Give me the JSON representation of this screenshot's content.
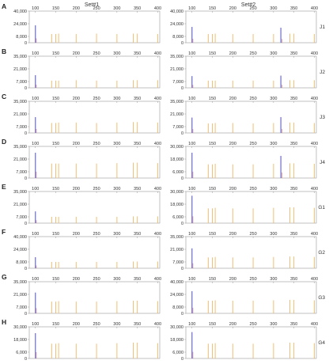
{
  "colors": {
    "peak_blue": "#7f7fcf",
    "peak_orange": "#f2be73",
    "axis": "#9a9a9a",
    "grid": "#dcdcdc"
  },
  "column_titles": [
    "Set#1",
    "Set#2"
  ],
  "x_tick_labels": [
    "100",
    "150",
    "200",
    "250",
    "300",
    "350",
    "400"
  ],
  "chart_data": [
    {
      "type": "bar",
      "panel": "A",
      "column": "Set#1",
      "x_ticks": [
        100,
        150,
        200,
        250,
        300,
        350,
        400
      ],
      "xlim": [
        85,
        405
      ],
      "y_ticks": [
        0,
        8000,
        24000,
        40000
      ],
      "ylim": [
        0,
        40000
      ],
      "series": [
        {
          "color": "blue",
          "x": [
            100
          ],
          "values": [
            22000
          ]
        },
        {
          "color": "orange",
          "x": [
            140,
            150,
            157,
            200,
            250,
            300,
            340,
            350,
            400
          ],
          "values": [
            11000,
            11000,
            11500,
            11000,
            11500,
            11000,
            11500,
            11500,
            11000
          ]
        }
      ]
    },
    {
      "type": "bar",
      "panel": "A",
      "column": "Set#2",
      "sample": "J1",
      "x_ticks": [
        100,
        150,
        200,
        250,
        300,
        350,
        400
      ],
      "xlim": [
        85,
        405
      ],
      "y_ticks": [
        0,
        8000,
        24000,
        40000
      ],
      "ylim": [
        0,
        40000
      ],
      "series": [
        {
          "color": "blue",
          "x": [
            100,
            318
          ],
          "values": [
            20000,
            19000
          ]
        },
        {
          "color": "orange",
          "x": [
            140,
            150,
            157,
            200,
            250,
            300,
            340,
            350,
            400
          ],
          "values": [
            11000,
            11000,
            11500,
            11000,
            11000,
            11000,
            11500,
            11500,
            11000
          ]
        }
      ]
    },
    {
      "type": "bar",
      "panel": "B",
      "column": "Set#1",
      "x_ticks": [
        100,
        150,
        200,
        250,
        300,
        350,
        400
      ],
      "xlim": [
        85,
        405
      ],
      "y_ticks": [
        0,
        7000,
        21000,
        35000
      ],
      "ylim": [
        0,
        35000
      ],
      "series": [
        {
          "color": "blue",
          "x": [
            100
          ],
          "values": [
            14000
          ]
        },
        {
          "color": "orange",
          "x": [
            140,
            150,
            157,
            200,
            250,
            300,
            340,
            350,
            400
          ],
          "values": [
            8000,
            8000,
            8000,
            8500,
            8000,
            8000,
            8500,
            8500,
            8500
          ]
        }
      ]
    },
    {
      "type": "bar",
      "panel": "B",
      "column": "Set#2",
      "sample": "J2",
      "x_ticks": [
        100,
        150,
        200,
        250,
        300,
        350,
        400
      ],
      "xlim": [
        85,
        405
      ],
      "y_ticks": [
        0,
        7000,
        21000,
        35000
      ],
      "ylim": [
        0,
        35000
      ],
      "series": [
        {
          "color": "blue",
          "x": [
            100,
            318
          ],
          "values": [
            13000,
            13500
          ]
        },
        {
          "color": "orange",
          "x": [
            140,
            150,
            157,
            200,
            250,
            300,
            340,
            350,
            400
          ],
          "values": [
            8000,
            8000,
            8000,
            8000,
            8000,
            8000,
            8500,
            8500,
            8500
          ]
        }
      ]
    },
    {
      "type": "bar",
      "panel": "C",
      "column": "Set#1",
      "x_ticks": [
        100,
        150,
        200,
        250,
        300,
        350,
        400
      ],
      "xlim": [
        85,
        405
      ],
      "y_ticks": [
        0,
        7000,
        21000,
        35000
      ],
      "ylim": [
        0,
        35000
      ],
      "series": [
        {
          "color": "blue",
          "x": [
            100
          ],
          "values": [
            17500
          ]
        },
        {
          "color": "orange",
          "x": [
            140,
            150,
            157,
            200,
            250,
            300,
            340,
            350,
            400
          ],
          "values": [
            11000,
            11000,
            11500,
            11500,
            11000,
            11500,
            12000,
            12000,
            11500
          ]
        }
      ]
    },
    {
      "type": "bar",
      "panel": "C",
      "column": "Set#2",
      "sample": "J3",
      "x_ticks": [
        100,
        150,
        200,
        250,
        300,
        350,
        400
      ],
      "xlim": [
        85,
        405
      ],
      "y_ticks": [
        0,
        7000,
        21000,
        35000
      ],
      "ylim": [
        0,
        35000
      ],
      "series": [
        {
          "color": "blue",
          "x": [
            100,
            318
          ],
          "values": [
            17000,
            17500
          ]
        },
        {
          "color": "orange",
          "x": [
            140,
            150,
            157,
            200,
            250,
            300,
            340,
            350,
            400
          ],
          "values": [
            10500,
            10500,
            11000,
            11000,
            10500,
            11000,
            11500,
            11500,
            11000
          ]
        }
      ]
    },
    {
      "type": "bar",
      "panel": "D",
      "column": "Set#1",
      "x_ticks": [
        100,
        150,
        200,
        250,
        300,
        350,
        400
      ],
      "xlim": [
        85,
        405
      ],
      "y_ticks": [
        0,
        7000,
        21000,
        35000
      ],
      "ylim": [
        0,
        35000
      ],
      "series": [
        {
          "color": "blue",
          "x": [
            100
          ],
          "values": [
            28000
          ]
        },
        {
          "color": "orange",
          "x": [
            140,
            150,
            157,
            200,
            250,
            300,
            340,
            350,
            400
          ],
          "values": [
            16000,
            16000,
            16000,
            16000,
            16000,
            16500,
            17000,
            17000,
            16500
          ]
        }
      ]
    },
    {
      "type": "bar",
      "panel": "D",
      "column": "Set#2",
      "sample": "J4",
      "x_ticks": [
        100,
        150,
        200,
        250,
        300,
        350,
        400
      ],
      "xlim": [
        85,
        405
      ],
      "y_ticks": [
        0,
        6000,
        18000,
        30000
      ],
      "ylim": [
        0,
        30000
      ],
      "series": [
        {
          "color": "blue",
          "x": [
            100,
            318
          ],
          "values": [
            24000,
            21000
          ]
        },
        {
          "color": "orange",
          "x": [
            140,
            150,
            157,
            200,
            250,
            300,
            340,
            350,
            400
          ],
          "values": [
            13000,
            13000,
            13500,
            13000,
            13000,
            13500,
            14000,
            14000,
            13500
          ]
        }
      ]
    },
    {
      "type": "bar",
      "panel": "E",
      "column": "Set#1",
      "x_ticks": [
        100,
        150,
        200,
        250,
        300,
        350,
        400
      ],
      "xlim": [
        85,
        405
      ],
      "y_ticks": [
        0,
        7000,
        21000,
        35000
      ],
      "ylim": [
        0,
        35000
      ],
      "series": [
        {
          "color": "blue",
          "x": [
            100
          ],
          "values": [
            13000
          ]
        },
        {
          "color": "orange",
          "x": [
            140,
            150,
            157,
            200,
            250,
            300,
            340,
            350,
            400
          ],
          "values": [
            7000,
            7000,
            7000,
            7000,
            7000,
            7000,
            7500,
            7500,
            7500
          ]
        }
      ]
    },
    {
      "type": "bar",
      "panel": "E",
      "column": "Set#2",
      "sample": "G1",
      "x_ticks": [
        100,
        150,
        200,
        250,
        300,
        350,
        400
      ],
      "xlim": [
        85,
        405
      ],
      "y_ticks": [
        0,
        6000,
        18000,
        30000
      ],
      "ylim": [
        0,
        30000
      ],
      "series": [
        {
          "color": "blue",
          "x": [
            100
          ],
          "values": [
            26000
          ]
        },
        {
          "color": "orange",
          "x": [
            140,
            150,
            157,
            200,
            250,
            300,
            340,
            350,
            400
          ],
          "values": [
            14000,
            14000,
            14500,
            14000,
            14000,
            14500,
            15000,
            15000,
            14500
          ]
        }
      ]
    },
    {
      "type": "bar",
      "panel": "F",
      "column": "Set#1",
      "x_ticks": [
        100,
        150,
        200,
        250,
        300,
        350,
        400
      ],
      "xlim": [
        85,
        405
      ],
      "y_ticks": [
        0,
        8000,
        24000,
        40000
      ],
      "ylim": [
        0,
        40000
      ],
      "series": [
        {
          "color": "blue",
          "x": [
            100
          ],
          "values": [
            14000
          ]
        },
        {
          "color": "orange",
          "x": [
            140,
            150,
            157,
            200,
            250,
            300,
            340,
            350,
            400
          ],
          "values": [
            8000,
            8000,
            8000,
            8000,
            8000,
            8000,
            8500,
            8500,
            8500
          ]
        }
      ]
    },
    {
      "type": "bar",
      "panel": "F",
      "column": "Set#2",
      "sample": "G2",
      "x_ticks": [
        100,
        150,
        200,
        250,
        300,
        350,
        400
      ],
      "xlim": [
        85,
        405
      ],
      "y_ticks": [
        0,
        7000,
        21000,
        35000
      ],
      "ylim": [
        0,
        35000
      ],
      "series": [
        {
          "color": "blue",
          "x": [
            100
          ],
          "values": [
            22000
          ]
        },
        {
          "color": "orange",
          "x": [
            140,
            150,
            157,
            200,
            250,
            300,
            340,
            350,
            400
          ],
          "values": [
            12000,
            12000,
            12500,
            12000,
            12000,
            12500,
            13000,
            13000,
            12500
          ]
        }
      ]
    },
    {
      "type": "bar",
      "panel": "G",
      "column": "Set#1",
      "x_ticks": [
        100,
        150,
        200,
        250,
        300,
        350,
        400
      ],
      "xlim": [
        85,
        405
      ],
      "y_ticks": [
        0,
        7000,
        21000,
        35000
      ],
      "ylim": [
        0,
        35000
      ],
      "series": [
        {
          "color": "blue",
          "x": [
            100
          ],
          "values": [
            23000
          ]
        },
        {
          "color": "orange",
          "x": [
            140,
            150,
            157,
            200,
            250,
            300,
            340,
            350,
            400
          ],
          "values": [
            13000,
            13000,
            13500,
            13000,
            13000,
            13500,
            14000,
            14000,
            13500
          ]
        }
      ]
    },
    {
      "type": "bar",
      "panel": "G",
      "column": "Set#2",
      "sample": "G3",
      "x_ticks": [
        100,
        150,
        200,
        250,
        300,
        350,
        400
      ],
      "xlim": [
        85,
        405
      ],
      "y_ticks": [
        0,
        8000,
        24000,
        40000
      ],
      "ylim": [
        0,
        40000
      ],
      "series": [
        {
          "color": "blue",
          "x": [
            100
          ],
          "values": [
            28000
          ]
        },
        {
          "color": "orange",
          "x": [
            140,
            150,
            157,
            200,
            250,
            300,
            340,
            350,
            400
          ],
          "values": [
            16000,
            16000,
            16500,
            16000,
            16000,
            16500,
            17000,
            17000,
            16500
          ]
        }
      ]
    },
    {
      "type": "bar",
      "panel": "H",
      "column": "Set#1",
      "x_ticks": [
        100,
        150,
        200,
        250,
        300,
        350,
        400
      ],
      "xlim": [
        85,
        405
      ],
      "y_ticks": [
        0,
        6000,
        18000,
        30000
      ],
      "ylim": [
        0,
        30000
      ],
      "series": [
        {
          "color": "blue",
          "x": [
            100
          ],
          "values": [
            24000
          ]
        },
        {
          "color": "orange",
          "x": [
            140,
            150,
            157,
            200,
            250,
            300,
            340,
            350,
            400
          ],
          "values": [
            14000,
            14000,
            14500,
            14000,
            14000,
            14500,
            15000,
            15000,
            14500
          ]
        }
      ]
    },
    {
      "type": "bar",
      "panel": "H",
      "column": "Set#2",
      "sample": "G4",
      "x_ticks": [
        100,
        150,
        200,
        250,
        300,
        350,
        400
      ],
      "xlim": [
        85,
        405
      ],
      "y_ticks": [
        0,
        6000,
        18000,
        30000
      ],
      "ylim": [
        0,
        30000
      ],
      "series": [
        {
          "color": "blue",
          "x": [
            100
          ],
          "values": [
            25000
          ]
        },
        {
          "color": "orange",
          "x": [
            140,
            150,
            157,
            200,
            250,
            300,
            340,
            350,
            400
          ],
          "values": [
            14000,
            14000,
            14500,
            14000,
            14000,
            14500,
            15000,
            15000,
            14500
          ]
        }
      ]
    }
  ]
}
